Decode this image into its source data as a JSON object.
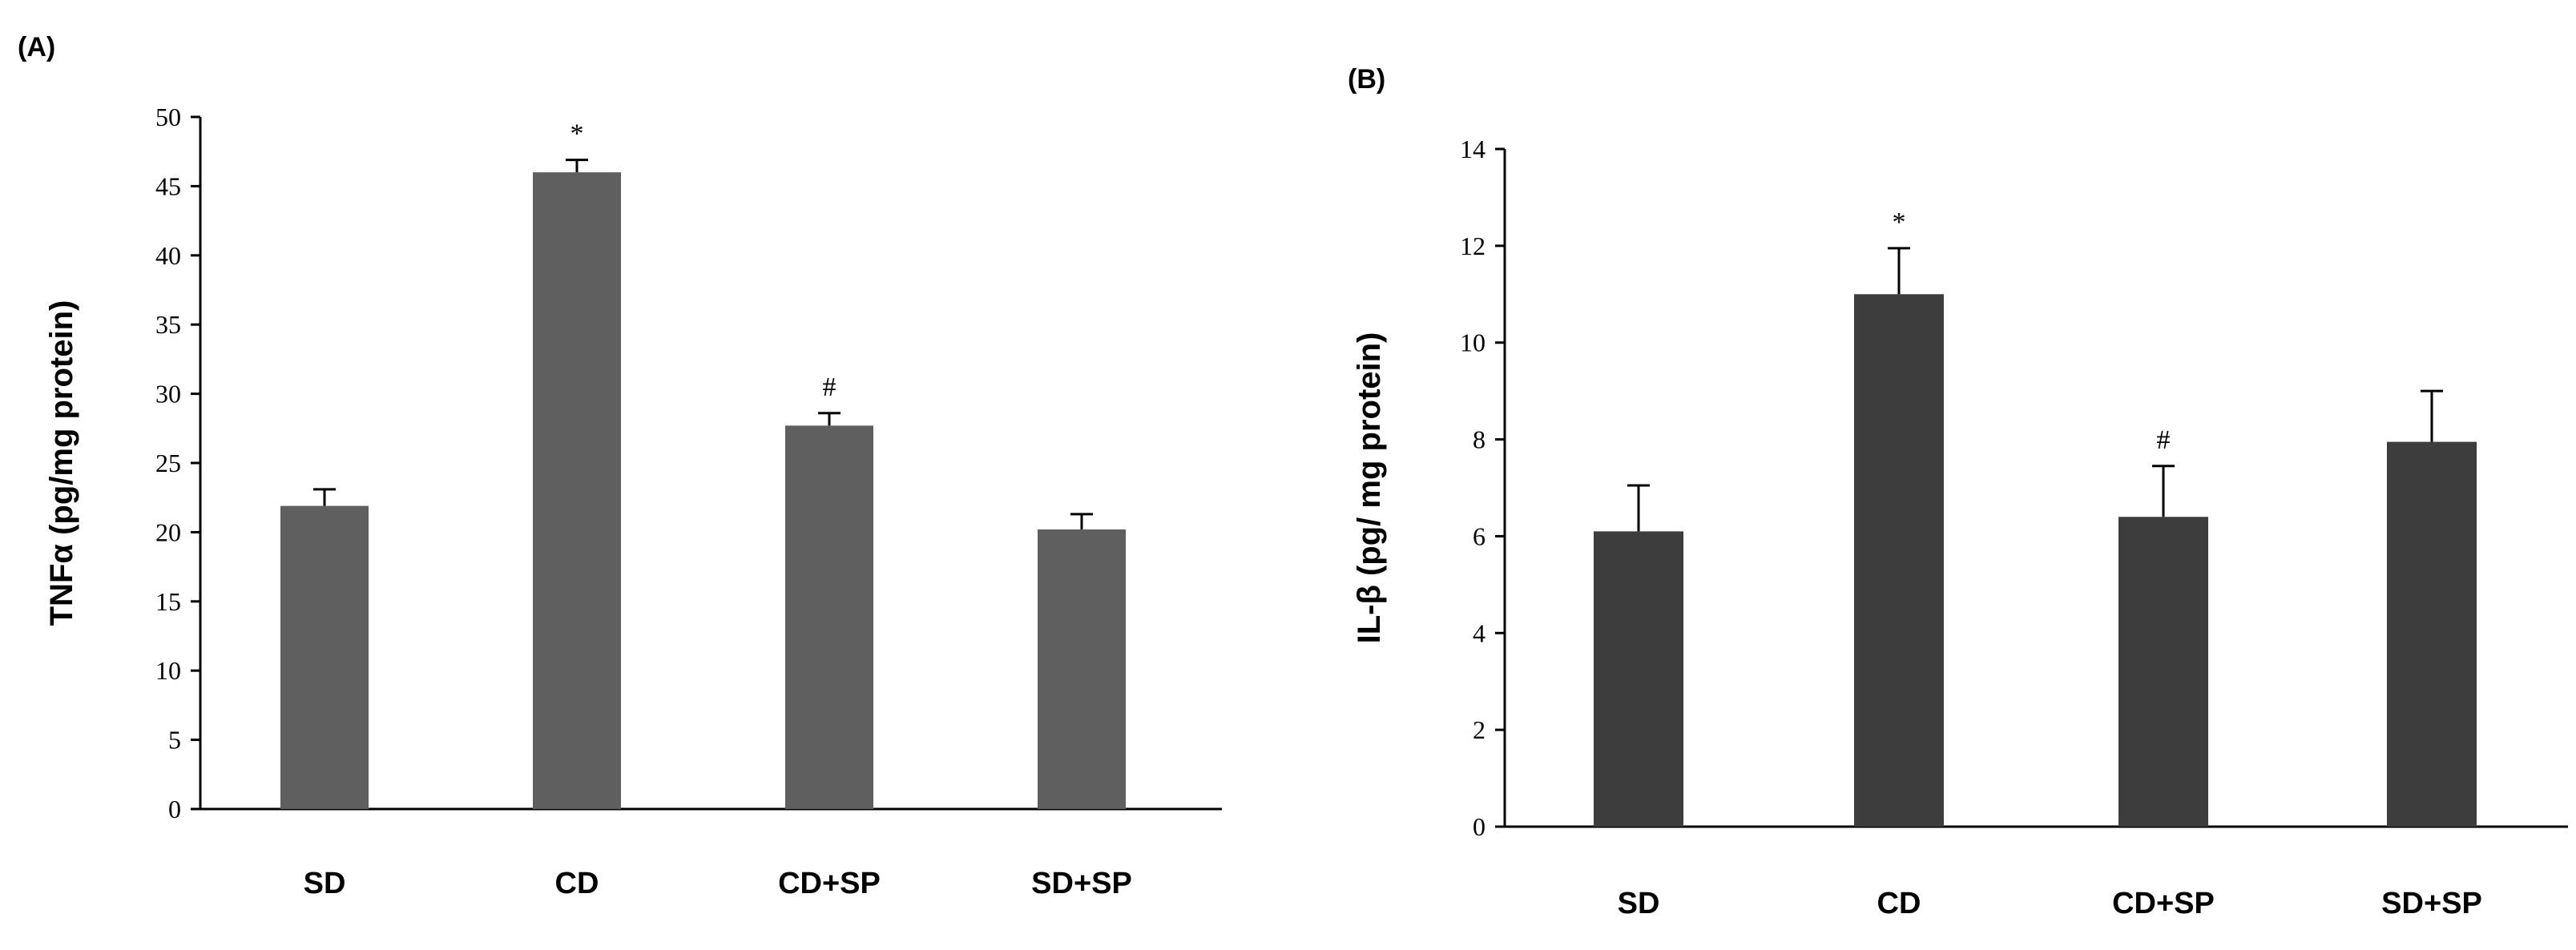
{
  "chart_data": [
    {
      "type": "bar",
      "panel_label": "(A)",
      "categories": [
        "SD",
        "CD",
        "CD+SP",
        "SD+SP"
      ],
      "values": [
        21.9,
        46.0,
        27.7,
        20.2
      ],
      "errors": [
        1.2,
        0.9,
        0.9,
        1.1
      ],
      "annotations": [
        "",
        "*",
        "#",
        ""
      ],
      "ylabel": "TNFα (pg/mg protein)",
      "ylim": [
        0,
        50
      ],
      "yticks": [
        "0",
        "5",
        "10",
        "15",
        "20",
        "25",
        "30",
        "35",
        "40",
        "45",
        "50"
      ],
      "bar_color": "#5f5f5f",
      "grid": false
    },
    {
      "type": "bar",
      "panel_label": "(B)",
      "categories": [
        "SD",
        "CD",
        "CD+SP",
        "SD+SP"
      ],
      "values": [
        6.1,
        11.0,
        6.4,
        7.95
      ],
      "errors": [
        0.95,
        0.95,
        1.05,
        1.05
      ],
      "annotations": [
        "",
        "*",
        "#",
        ""
      ],
      "ylabel": "IL-β (pg/ mg protein)",
      "ylim": [
        0,
        14
      ],
      "yticks": [
        "0",
        "2",
        "4",
        "6",
        "8",
        "10",
        "12",
        "14"
      ],
      "bar_color": "#3d3d3d",
      "grid": false
    }
  ]
}
